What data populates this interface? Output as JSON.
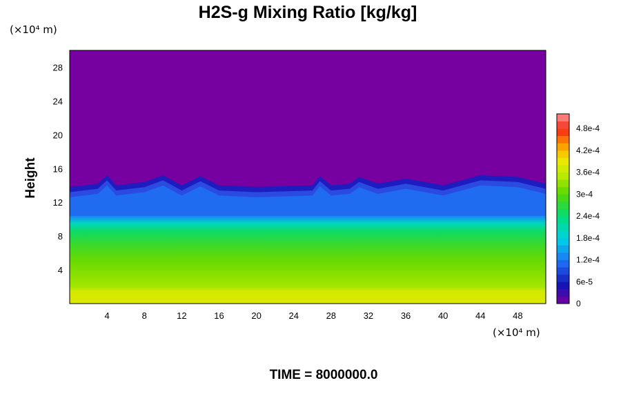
{
  "chart_data": {
    "type": "heatmap",
    "title": "H2S-g Mixing Ratio [kg/kg]",
    "ylabel": "Height",
    "x_unit": "(×10⁴ m)",
    "y_unit": "(×10⁴ m)",
    "footer": "TIME = 8000000.0",
    "xlim": [
      0,
      51
    ],
    "ylim": [
      0,
      30
    ],
    "x_ticks": [
      4,
      8,
      12,
      16,
      20,
      24,
      28,
      32,
      36,
      40,
      44,
      48
    ],
    "y_ticks": [
      4,
      8,
      12,
      16,
      20,
      24,
      28
    ],
    "colorbar": {
      "min": 0,
      "max": 0.00052,
      "labels": [
        "0",
        "6e-5",
        "1.2e-4",
        "1.8e-4",
        "2.4e-4",
        "3e-4",
        "3.6e-4",
        "4.2e-4",
        "4.8e-4"
      ],
      "label_values": [
        0,
        6e-05,
        0.00012,
        0.00018,
        0.00024,
        0.0003,
        0.00036,
        0.00042,
        0.00048
      ]
    },
    "vertical_profile": [
      {
        "height": 0,
        "value": 0.00038
      },
      {
        "height": 1.5,
        "value": 0.00037
      },
      {
        "height": 2,
        "value": 0.00034
      },
      {
        "height": 5,
        "value": 0.00031
      },
      {
        "height": 7,
        "value": 0.00028
      },
      {
        "height": 8.5,
        "value": 0.00025
      },
      {
        "height": 9.5,
        "value": 0.0002
      },
      {
        "height": 10.2,
        "value": 0.00014
      },
      {
        "height": 11,
        "value": 0.0001
      },
      {
        "height": 12.5,
        "value": 9e-05
      },
      {
        "height": 13.5,
        "value": 4e-05
      },
      {
        "height": 14,
        "value": 0.0
      }
    ],
    "plume_top_profile": [
      {
        "x": 0,
        "top": 13.8
      },
      {
        "x": 3,
        "top": 14.2
      },
      {
        "x": 4,
        "top": 15.2
      },
      {
        "x": 5,
        "top": 14.0
      },
      {
        "x": 8,
        "top": 14.4
      },
      {
        "x": 10,
        "top": 15.2
      },
      {
        "x": 12,
        "top": 14.0
      },
      {
        "x": 14,
        "top": 15.1
      },
      {
        "x": 16,
        "top": 14.0
      },
      {
        "x": 20,
        "top": 13.8
      },
      {
        "x": 26,
        "top": 14.0
      },
      {
        "x": 26.8,
        "top": 15.1
      },
      {
        "x": 28,
        "top": 14.0
      },
      {
        "x": 30,
        "top": 14.2
      },
      {
        "x": 31,
        "top": 15.0
      },
      {
        "x": 33,
        "top": 14.2
      },
      {
        "x": 36,
        "top": 14.8
      },
      {
        "x": 40,
        "top": 14.0
      },
      {
        "x": 44,
        "top": 15.2
      },
      {
        "x": 48,
        "top": 15.0
      },
      {
        "x": 51,
        "top": 14.2
      }
    ]
  }
}
